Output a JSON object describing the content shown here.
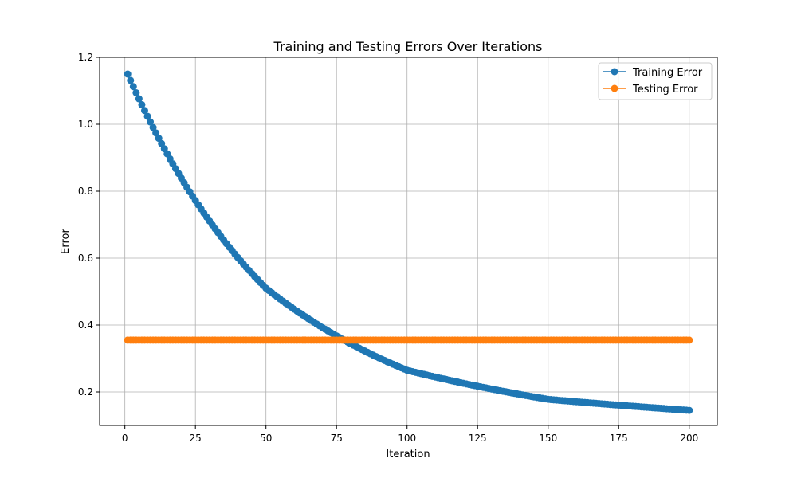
{
  "chart_data": {
    "type": "line",
    "title": "Training and Testing Errors Over Iterations",
    "xlabel": "Iteration",
    "ylabel": "Error",
    "xlim": [
      -8.95,
      209.95
    ],
    "ylim": [
      0.1,
      1.2
    ],
    "xticks": [
      0,
      25,
      50,
      75,
      100,
      125,
      150,
      175,
      200
    ],
    "xtick_labels": [
      "0",
      "25",
      "50",
      "75",
      "100",
      "125",
      "150",
      "175",
      "200"
    ],
    "yticks": [
      0.2,
      0.4,
      0.6,
      0.8,
      1.0,
      1.2
    ],
    "ytick_labels": [
      "0.2",
      "0.4",
      "0.6",
      "0.8",
      "1.0",
      "1.2"
    ],
    "grid": true,
    "legend_position": "top-right",
    "markers": "circle",
    "series": [
      {
        "name": "Training Error",
        "color": "#1f77b4",
        "model": "exponential-decay",
        "x_range": [
          1,
          200
        ],
        "start_value": 1.15,
        "value_at_50": 0.51,
        "value_at_100": 0.265,
        "value_at_150": 0.178,
        "end_value": 0.145
      },
      {
        "name": "Testing Error",
        "color": "#ff7f0e",
        "model": "constant",
        "x_range": [
          1,
          200
        ],
        "start_value": 0.355,
        "end_value": 0.355
      }
    ]
  }
}
